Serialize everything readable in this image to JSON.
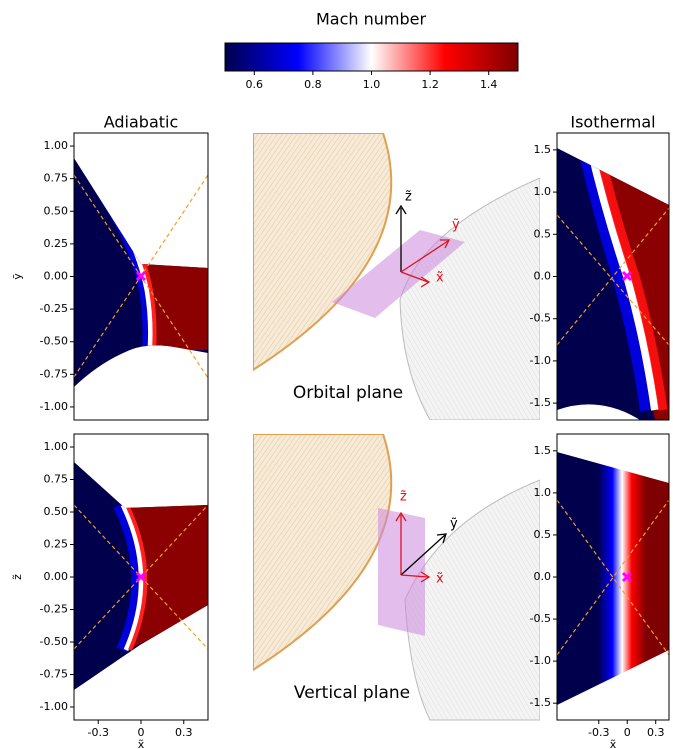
{
  "colorbar": {
    "title": "Mach number",
    "lim": [
      0.5,
      1.5
    ],
    "ticks": [
      0.6,
      0.8,
      {
        "value": 1,
        "label": "1.0"
      },
      1.2,
      1.4
    ]
  },
  "panels": [
    {
      "title": "Adiabatic",
      "ylabel": "ỹ",
      "xlim": [
        -0.47,
        0.47
      ],
      "ylim": [
        -1.1,
        1.1
      ],
      "yticks": [
        {
          "value": 1,
          "label": "1.00"
        },
        0.75,
        {
          "value": 0.5,
          "label": "0.50"
        },
        0.25,
        {
          "value": 0,
          "label": "0.00"
        },
        -0.25,
        {
          "value": -0.5,
          "label": "-0.50"
        },
        -0.75,
        {
          "value": -1,
          "label": "-1.00"
        }
      ]
    },
    {
      "title": "Isothermal",
      "xlim": [
        -0.74,
        0.44
      ],
      "ylim": [
        -1.7,
        1.7
      ],
      "yticks": [
        1.5,
        {
          "value": 1,
          "label": "1.0"
        },
        0.5,
        {
          "value": 0,
          "label": "0.0"
        },
        -0.5,
        {
          "value": -1,
          "label": "-1.0"
        },
        -1.5
      ]
    },
    {
      "ylabel": "z̃",
      "xlabel": "x̃",
      "xlim": [
        -0.47,
        0.47
      ],
      "ylim": [
        -1.1,
        1.1
      ],
      "yticks": [
        {
          "value": 1,
          "label": "1.00"
        },
        0.75,
        {
          "value": 0.5,
          "label": "0.50"
        },
        0.25,
        {
          "value": 0,
          "label": "0.00"
        },
        -0.25,
        {
          "value": -0.5,
          "label": "-0.50"
        },
        -0.75,
        {
          "value": -1,
          "label": "-1.00"
        }
      ],
      "xticks": [
        -0.3,
        0,
        0.3
      ]
    },
    {
      "xlabel": "x̃",
      "xlim": [
        -0.74,
        0.44
      ],
      "ylim": [
        -1.7,
        1.7
      ],
      "yticks": [
        1.5,
        {
          "value": 1,
          "label": "1.0"
        },
        0.5,
        {
          "value": 0,
          "label": "0.0"
        },
        -0.5,
        {
          "value": -1,
          "label": "-1.0"
        },
        -1.5
      ],
      "xticks": [
        -0.3,
        0,
        0.3
      ]
    }
  ],
  "views": [
    {
      "label": "Orbital plane",
      "axes": [
        "z̃",
        "ỹ",
        "x̃"
      ]
    },
    {
      "label": "Vertical plane",
      "axes": [
        "z̃",
        "ỹ",
        "x̃"
      ]
    }
  ]
}
